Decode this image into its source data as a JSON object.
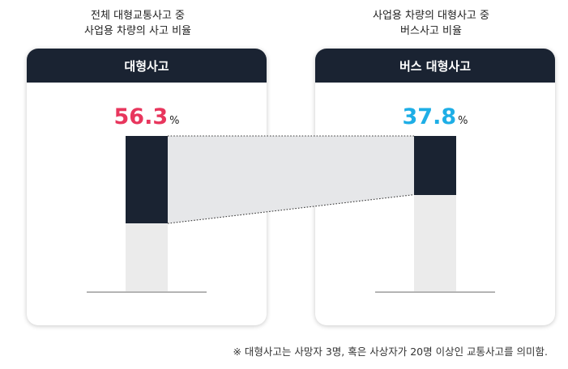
{
  "chart_data": {
    "type": "bar",
    "captions": [
      [
        "전체 대형교통사고 중",
        "사업용 차량의 사고 비율"
      ],
      [
        "사업용 차량의 대형사고 중",
        "버스사고 비율"
      ]
    ],
    "panels": [
      {
        "header": "대형사고",
        "value": 56.3,
        "value_text": "56.3",
        "unit": "%",
        "color": "#e8365d"
      },
      {
        "header": "버스 대형사고",
        "value": 37.8,
        "value_text": "37.8",
        "unit": "%",
        "color": "#1eaee6"
      }
    ],
    "ylim": [
      0,
      100
    ],
    "colors": {
      "filled": "#1a2332",
      "remainder": "#ebebeb",
      "connector": "#e6e7e9",
      "baseline": "#b4b4b4"
    }
  },
  "footnote": "※ 대형사고는 사망자 3명, 혹은 사상자가 20명 이상인 교통사고를 의미함."
}
